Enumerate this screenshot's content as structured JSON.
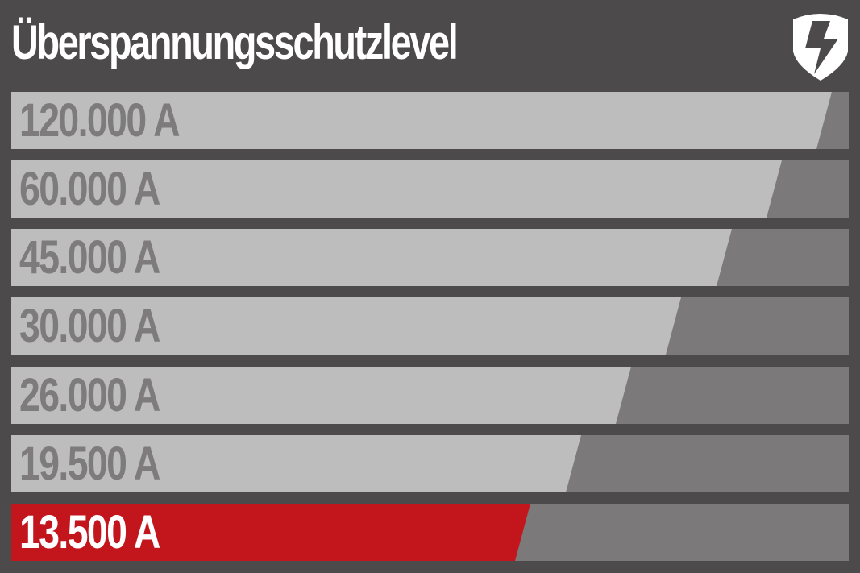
{
  "title": "Überspannungsschutzlevel",
  "icon": "shield-lightning-icon",
  "colors": {
    "background": "#4d4a4b",
    "bar_light": "#bdbdbd",
    "bar_dark": "#7b797a",
    "active": "#c3161c"
  },
  "levels": [
    {
      "label": "120.000 A",
      "fill": 0.98,
      "active": false
    },
    {
      "label": "60.000 A",
      "fill": 0.92,
      "active": false
    },
    {
      "label": "45.000 A",
      "fill": 0.86,
      "active": false
    },
    {
      "label": "30.000 A",
      "fill": 0.8,
      "active": false
    },
    {
      "label": "26.000 A",
      "fill": 0.74,
      "active": false
    },
    {
      "label": "19.500 A",
      "fill": 0.68,
      "active": false
    },
    {
      "label": "13.500 A",
      "fill": 0.62,
      "active": true
    }
  ]
}
